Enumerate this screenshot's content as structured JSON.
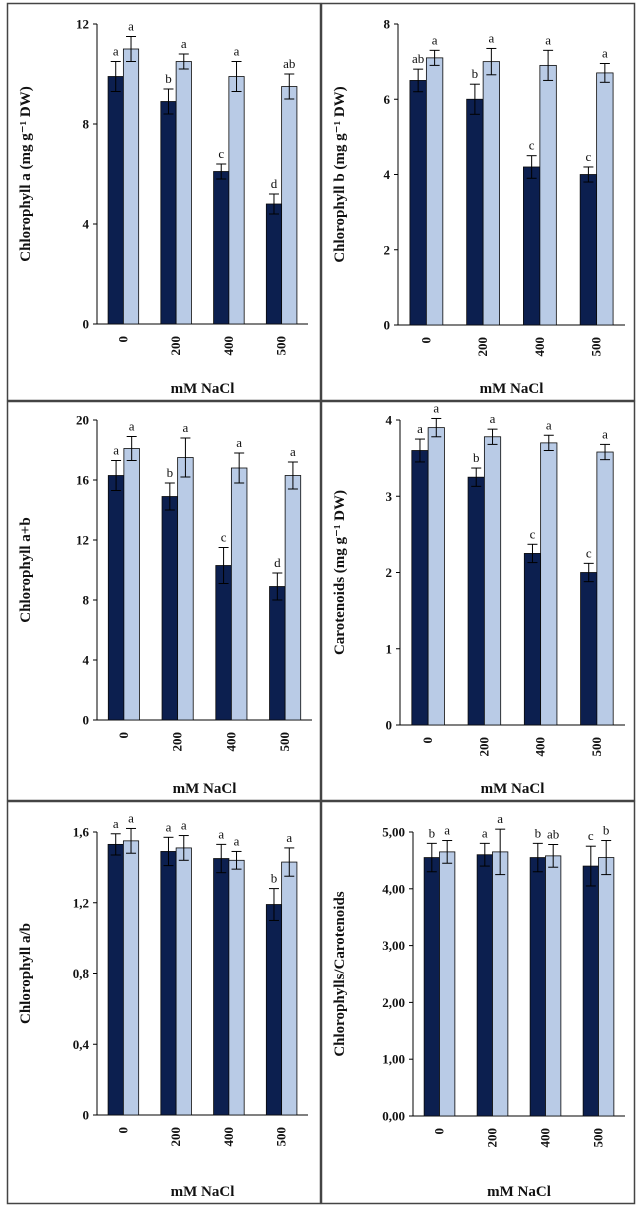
{
  "colors": {
    "dark_bar": "#0c1f4f",
    "light_bar": "#b9cbe6",
    "frame": "#444444",
    "axis": "#000000"
  },
  "chart_data": [
    {
      "type": "bar",
      "title": "",
      "xlabel": "mM NaCl",
      "ylabel": "Chlorophyll a (mg g⁻¹ DW)",
      "categories": [
        "0",
        "200",
        "400",
        "500"
      ],
      "ylim": [
        0,
        12
      ],
      "yticks": [
        "0",
        "4",
        "8",
        "12"
      ],
      "series": [
        {
          "name": "dark",
          "values": [
            9.9,
            8.9,
            6.1,
            4.8
          ],
          "errors": [
            0.6,
            0.5,
            0.3,
            0.4
          ],
          "letters": [
            "a",
            "b",
            "c",
            "d"
          ]
        },
        {
          "name": "light",
          "values": [
            11.0,
            10.5,
            9.9,
            9.5
          ],
          "errors": [
            0.5,
            0.3,
            0.6,
            0.5
          ],
          "letters": [
            "a",
            "a",
            "a",
            "ab"
          ]
        }
      ]
    },
    {
      "type": "bar",
      "title": "",
      "xlabel": "mM NaCl",
      "ylabel": "Chlorophyll b (mg g⁻¹ DW)",
      "categories": [
        "0",
        "200",
        "400",
        "500"
      ],
      "ylim": [
        0,
        8
      ],
      "yticks": [
        "0",
        "2",
        "4",
        "6",
        "8"
      ],
      "series": [
        {
          "name": "dark",
          "values": [
            6.5,
            6.0,
            4.2,
            4.0
          ],
          "errors": [
            0.3,
            0.4,
            0.3,
            0.2
          ],
          "letters": [
            "ab",
            "b",
            "c",
            "c"
          ]
        },
        {
          "name": "light",
          "values": [
            7.1,
            7.0,
            6.9,
            6.7
          ],
          "errors": [
            0.2,
            0.35,
            0.4,
            0.25
          ],
          "letters": [
            "a",
            "a",
            "a",
            "a"
          ]
        }
      ]
    },
    {
      "type": "bar",
      "title": "",
      "xlabel": "mM NaCl",
      "ylabel": "Chlorophyll a+b",
      "categories": [
        "0",
        "200",
        "400",
        "500"
      ],
      "ylim": [
        0,
        20
      ],
      "yticks": [
        "0",
        "4",
        "8",
        "12",
        "16",
        "20"
      ],
      "series": [
        {
          "name": "dark",
          "values": [
            16.3,
            14.9,
            10.3,
            8.9
          ],
          "errors": [
            1.0,
            0.9,
            1.2,
            0.9
          ],
          "letters": [
            "a",
            "b",
            "c",
            "d"
          ]
        },
        {
          "name": "light",
          "values": [
            18.1,
            17.5,
            16.8,
            16.3
          ],
          "errors": [
            0.8,
            1.3,
            1.0,
            0.9
          ],
          "letters": [
            "a",
            "a",
            "a",
            "a"
          ]
        }
      ]
    },
    {
      "type": "bar",
      "title": "",
      "xlabel": "mM NaCl",
      "ylabel": "Carotenoids (mg g⁻¹ DW)",
      "categories": [
        "0",
        "200",
        "400",
        "500"
      ],
      "ylim": [
        0,
        4
      ],
      "yticks": [
        "0",
        "1",
        "2",
        "3",
        "4"
      ],
      "series": [
        {
          "name": "dark",
          "values": [
            3.6,
            3.25,
            2.25,
            2.0
          ],
          "errors": [
            0.15,
            0.12,
            0.12,
            0.12
          ],
          "letters": [
            "a",
            "b",
            "c",
            "c"
          ]
        },
        {
          "name": "light",
          "values": [
            3.9,
            3.78,
            3.7,
            3.58
          ],
          "errors": [
            0.12,
            0.1,
            0.1,
            0.1
          ],
          "letters": [
            "a",
            "a",
            "a",
            "a"
          ]
        }
      ]
    },
    {
      "type": "bar",
      "title": "",
      "xlabel": "mM NaCl",
      "ylabel": "Chlorophyll a/b",
      "categories": [
        "0",
        "200",
        "400",
        "500"
      ],
      "ylim": [
        0,
        1.6
      ],
      "yticks": [
        "0",
        "0,4",
        "0,8",
        "1,2",
        "1,6"
      ],
      "series": [
        {
          "name": "dark",
          "values": [
            1.53,
            1.49,
            1.45,
            1.19
          ],
          "errors": [
            0.06,
            0.08,
            0.08,
            0.09
          ],
          "letters": [
            "a",
            "a",
            "a",
            "b"
          ]
        },
        {
          "name": "light",
          "values": [
            1.55,
            1.51,
            1.44,
            1.43
          ],
          "errors": [
            0.07,
            0.07,
            0.05,
            0.08
          ],
          "letters": [
            "a",
            "a",
            "a",
            "a"
          ]
        }
      ]
    },
    {
      "type": "bar",
      "title": "",
      "xlabel": "mM NaCl",
      "ylabel": "Chlorophylls/Carotenoids",
      "categories": [
        "0",
        "200",
        "400",
        "500"
      ],
      "ylim": [
        0,
        5
      ],
      "yticks": [
        "0,00",
        "1,00",
        "2,00",
        "3,00",
        "4,00",
        "5,00"
      ],
      "series": [
        {
          "name": "dark",
          "values": [
            4.55,
            4.6,
            4.55,
            4.4
          ],
          "errors": [
            0.25,
            0.2,
            0.25,
            0.35
          ],
          "letters": [
            "b",
            "a",
            "b",
            "c"
          ]
        },
        {
          "name": "light",
          "values": [
            4.65,
            4.65,
            4.58,
            4.55
          ],
          "errors": [
            0.2,
            0.4,
            0.2,
            0.3
          ],
          "letters": [
            "a",
            "a",
            "ab",
            "b"
          ]
        }
      ]
    }
  ]
}
